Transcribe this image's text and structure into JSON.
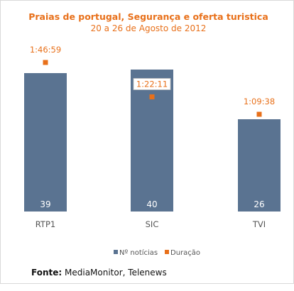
{
  "chart_data": {
    "type": "bar",
    "title": "Praias de portugal, Segurança e oferta turistica",
    "subtitle": "20 a 26 de Agosto de 2012",
    "categories": [
      "RTP1",
      "SIC",
      "TVI"
    ],
    "series": [
      {
        "name": "Nº notícias",
        "type": "bar",
        "values": [
          39,
          40,
          26
        ],
        "color": "#5a7391"
      },
      {
        "name": "Duração",
        "type": "scatter",
        "values": [
          "1:46:59",
          "1:22:11",
          "1:09:38"
        ],
        "color": "#e8701a"
      }
    ],
    "ylim": [
      0,
      40
    ],
    "grid": false,
    "legend_position": "bottom"
  },
  "source": {
    "label": "Fonte:",
    "text": "MediaMonitor, Telenews"
  }
}
